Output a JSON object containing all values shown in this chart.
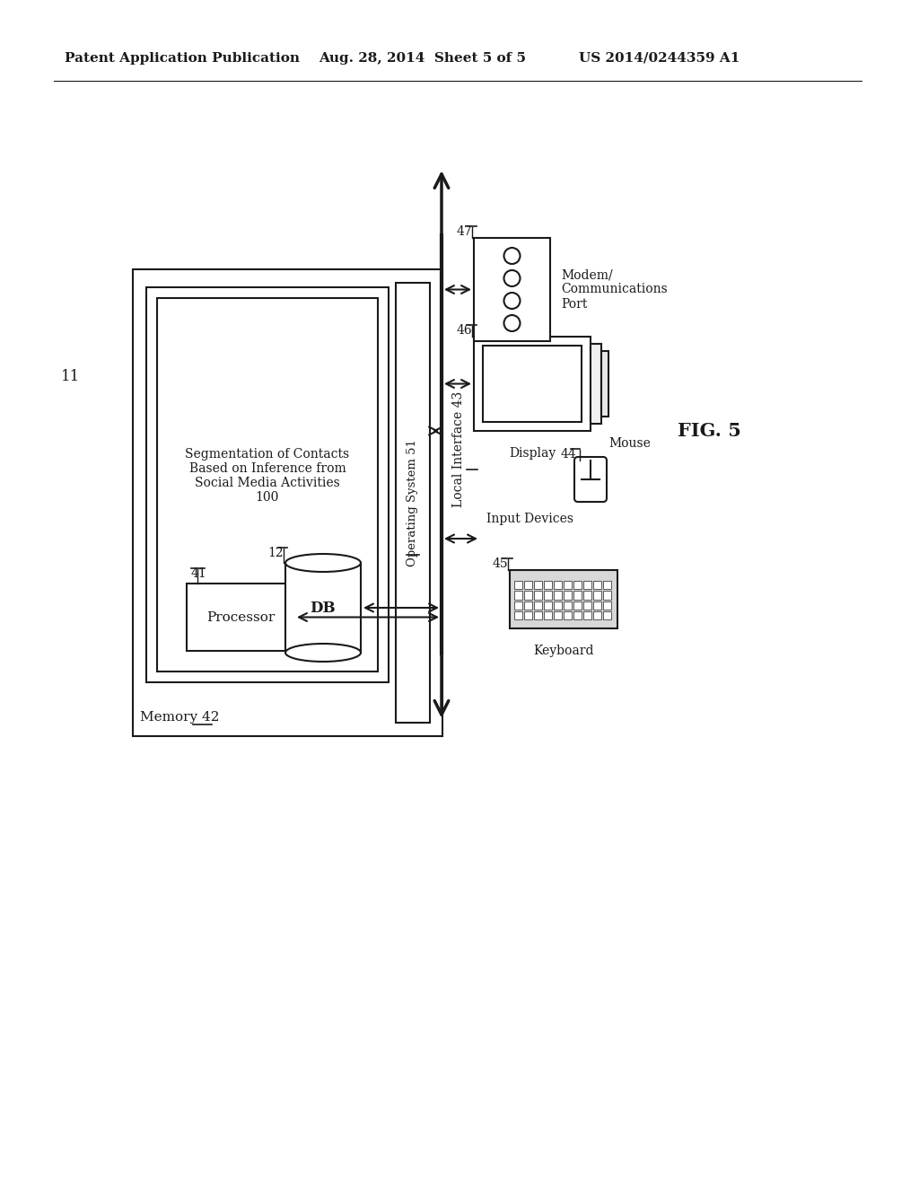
{
  "bg_color": "#ffffff",
  "line_color": "#1a1a1a",
  "header_text_left": "Patent Application Publication",
  "header_text_mid": "Aug. 28, 2014  Sheet 5 of 5",
  "header_text_right": "US 2014/0244359 A1",
  "fig_label": "FIG. 5",
  "system_label": "11",
  "memory_label": "Memory 42",
  "seg_label": "Segmentation of Contacts\nBased on Inference from\nSocial Media Activities\n100",
  "os_label": "Operating System 51",
  "local_interface_label": "Local Interface 43",
  "processor_label": "Processor",
  "processor_num": "41",
  "db_label": "DB",
  "db_num": "12",
  "modem_label": "Modem/\nCommunications\nPort",
  "modem_num": "47",
  "display_label": "Display",
  "display_num": "46",
  "input_label": "Input Devices",
  "mouse_label": "Mouse",
  "mouse_num": "44",
  "keyboard_label": "Keyboard",
  "keyboard_num": "45"
}
